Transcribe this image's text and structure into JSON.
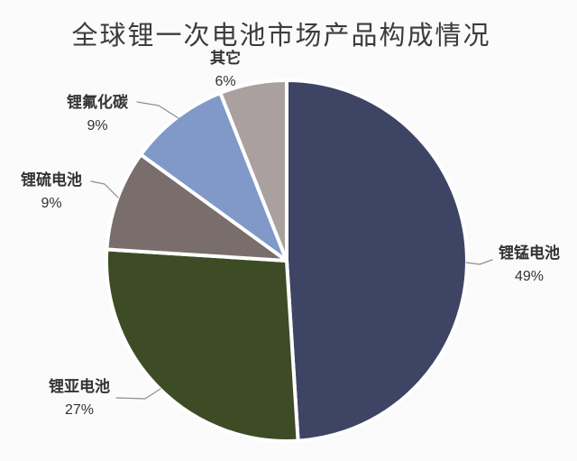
{
  "title": "全球锂一次电池市场产品构成情况",
  "chart_data": {
    "type": "pie",
    "title": "全球锂一次电池市场产品构成情况",
    "direction": "clockwise",
    "start_angle_deg": 0,
    "legend_position": "none",
    "labels_style": "outside-with-leader-lines",
    "background_color": "#fbfbfc",
    "separator_color": "#ffffff",
    "slices": [
      {
        "label": "锂锰电池",
        "value_pct": 49,
        "percent_label": "49%",
        "color": "#3D4464"
      },
      {
        "label": "锂亚电池",
        "value_pct": 27,
        "percent_label": "27%",
        "color": "#3E4C26"
      },
      {
        "label": "锂硫电池",
        "value_pct": 9,
        "percent_label": "9%",
        "color": "#7A6E6C"
      },
      {
        "label": "锂氟化碳",
        "value_pct": 9,
        "percent_label": "9%",
        "color": "#8099C8"
      },
      {
        "label": "其它",
        "value_pct": 6,
        "percent_label": "6%",
        "color": "#A9A09F"
      }
    ]
  }
}
